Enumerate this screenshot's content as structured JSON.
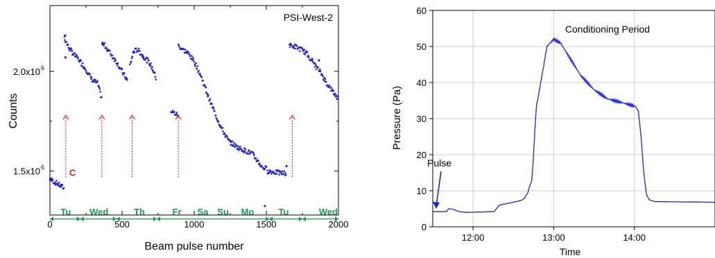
{
  "colors": {
    "data_blue": "#1f1fd8",
    "arrow_red": "#d81b1b",
    "day_green": "#1a9a4a",
    "axis": "#000000",
    "grid": "#cccccc"
  },
  "chart_data": [
    {
      "type": "scatter",
      "title": "PSI-West-2",
      "xlabel": "Beam pulse number",
      "ylabel": "Counts",
      "xlim": [
        0,
        2000
      ],
      "ylim": [
        1280000.0,
        2330000.0
      ],
      "xticks": [
        {
          "v": 0,
          "label": "0"
        },
        {
          "v": 500,
          "label": "500"
        },
        {
          "v": 1000,
          "label": "1000"
        },
        {
          "v": 1500,
          "label": "1500"
        },
        {
          "v": 2000,
          "label": "2000"
        }
      ],
      "ytick_labels": [
        {
          "v": 1500000,
          "label": "1.5x10",
          "sup": "6"
        },
        {
          "v": 2000000,
          "label": "2.0x10",
          "sup": "6"
        }
      ],
      "grid": false,
      "segments": [
        {
          "x": [
            0,
            100
          ],
          "y": [
            1460000.0,
            1415000.0
          ]
        },
        {
          "x": [
            100,
            110,
            130,
            160,
            200,
            250,
            290,
            330,
            360
          ],
          "y": [
            2170000.0,
            2150000.0,
            2120000.0,
            2090000.0,
            2060000.0,
            2010000.0,
            1960000.0,
            1940000.0,
            1860000.0
          ]
        },
        {
          "x": [
            360,
            380,
            420,
            460,
            500,
            540
          ],
          "y": [
            2140000.0,
            2130000.0,
            2090000.0,
            2050000.0,
            2000000.0,
            1950000.0
          ]
        },
        {
          "x": [
            555,
            580,
            610,
            640,
            670,
            700,
            720,
            740
          ],
          "y": [
            2030000.0,
            2100000.0,
            2110000.0,
            2080000.0,
            2060000.0,
            2030000.0,
            2000000.0,
            1960000.0
          ]
        },
        {
          "x": [
            840,
            890
          ],
          "y": [
            1800000.0,
            1780000.0
          ]
        },
        {
          "x": [
            890,
            920,
            960,
            1000,
            1040,
            1080,
            1110,
            1150,
            1200,
            1240,
            1300,
            1360,
            1400,
            1440,
            1470,
            1510
          ],
          "y": [
            2130000.0,
            2110000.0,
            2090000.0,
            2050000.0,
            1990000.0,
            1910000.0,
            1850000.0,
            1780000.0,
            1700000.0,
            1650000.0,
            1620000.0,
            1600000.0,
            1590000.0,
            1550000.0,
            1520000.0,
            1510000.0
          ]
        },
        {
          "x": [
            1510,
            1560,
            1600,
            1640
          ],
          "y": [
            1500000.0,
            1495000.0,
            1490000.0,
            1490000.0
          ]
        },
        {
          "x": [
            1660,
            1700,
            1740,
            1780,
            1800,
            1840,
            1880,
            1920,
            1960,
            2000
          ],
          "y": [
            2130000.0,
            2125000.0,
            2110000.0,
            2090000.0,
            2070000.0,
            2030000.0,
            1990000.0,
            1940000.0,
            1900000.0,
            1860000.0
          ]
        }
      ],
      "outlier_points": [
        {
          "x": 105,
          "y": 2180000.0
        },
        {
          "x": 108,
          "y": 2070000.0
        },
        {
          "x": 1640,
          "y": 1525000.0
        },
        {
          "x": 1490,
          "y": 1325000.0
        },
        {
          "x": 1865,
          "y": 2055000.0
        }
      ],
      "arrows": [
        {
          "x": 110,
          "label": "C"
        },
        {
          "x": 360,
          "label": ""
        },
        {
          "x": 570,
          "label": ""
        },
        {
          "x": 890,
          "label": ""
        },
        {
          "x": 1680,
          "label": ""
        }
      ],
      "arrow_y_range": [
        1470000.0,
        1780000.0
      ],
      "day_line_y": 1260000.0,
      "day_boundaries": [
        0,
        210,
        460,
        740,
        1520,
        1750,
        2000
      ],
      "day_labels": [
        {
          "x": 110,
          "label": "Tu"
        },
        {
          "x": 340,
          "label": "Wed"
        },
        {
          "x": 620,
          "label": "Th"
        },
        {
          "x": 880,
          "label": "Fr"
        },
        {
          "x": 1060,
          "label": "Sa"
        },
        {
          "x": 1200,
          "label": "Su"
        },
        {
          "x": 1370,
          "label": "Mo"
        },
        {
          "x": 1620,
          "label": "Tu"
        },
        {
          "x": 1930,
          "label": "Wed"
        }
      ]
    },
    {
      "type": "line",
      "title": "Conditioning Period",
      "xlabel": "Time",
      "ylabel": "Pressure (Pa)",
      "xlim": [
        690,
        900
      ],
      "ylim": [
        0,
        60
      ],
      "grid": true,
      "xticks": [
        {
          "v": 720,
          "label": "12:00"
        },
        {
          "v": 780,
          "label": "13:00"
        },
        {
          "v": 840,
          "label": "14:00"
        }
      ],
      "yticks": [
        0,
        10,
        20,
        30,
        40,
        50,
        60
      ],
      "x_minutes": [
        690,
        700,
        702,
        712,
        714,
        716,
        725,
        735,
        740,
        743,
        746,
        749,
        752,
        755,
        756,
        758,
        760,
        763,
        768,
        775,
        780,
        785,
        790,
        800,
        810,
        820,
        835,
        840,
        841,
        843,
        845,
        847,
        849,
        851,
        855,
        900
      ],
      "pressure": [
        4.2,
        4.2,
        5.0,
        4.1,
        4.0,
        4.0,
        4.1,
        4.2,
        6.0,
        6.3,
        6.5,
        6.7,
        7.0,
        7.2,
        7.4,
        7.8,
        9.0,
        12.0,
        35.0,
        50.0,
        52.0,
        51.0,
        48.0,
        42.0,
        38.0,
        35.5,
        34.0,
        33.5,
        33.3,
        32.0,
        25.0,
        15.0,
        9.0,
        7.5,
        7.0,
        6.8
      ],
      "annotation": {
        "text": "Pulse",
        "x": 702,
        "y": 5.0
      }
    }
  ]
}
